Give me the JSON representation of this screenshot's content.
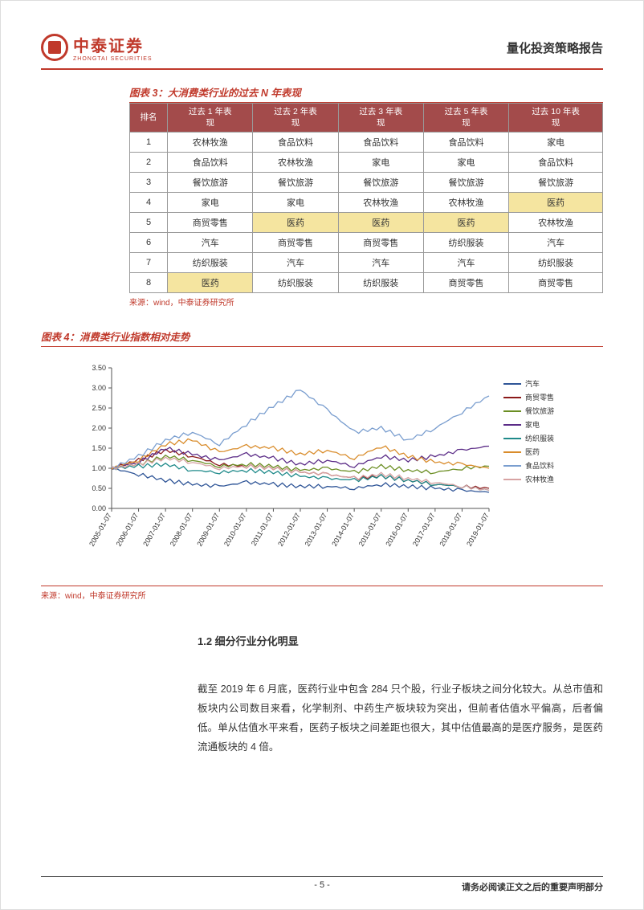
{
  "header": {
    "logo_cn": "中泰证券",
    "logo_en": "ZHONGTAI SECURITIES",
    "right": "量化投资策略报告"
  },
  "table3": {
    "caption": "图表 3：大消费类行业的过去 N 年表现",
    "columns": [
      "排名",
      "过去 1 年表现",
      "过去 2 年表现",
      "过去 3 年表现",
      "过去 5 年表现",
      "过去 10 年表现"
    ],
    "rows": [
      [
        "1",
        "农林牧渔",
        "食品饮料",
        "食品饮料",
        "食品饮料",
        "家电"
      ],
      [
        "2",
        "食品饮料",
        "农林牧渔",
        "家电",
        "家电",
        "食品饮料"
      ],
      [
        "3",
        "餐饮旅游",
        "餐饮旅游",
        "餐饮旅游",
        "餐饮旅游",
        "餐饮旅游"
      ],
      [
        "4",
        "家电",
        "家电",
        "农林牧渔",
        "农林牧渔",
        "医药"
      ],
      [
        "5",
        "商贸零售",
        "医药",
        "医药",
        "医药",
        "农林牧渔"
      ],
      [
        "6",
        "汽车",
        "商贸零售",
        "商贸零售",
        "纺织服装",
        "汽车"
      ],
      [
        "7",
        "纺织服装",
        "汽车",
        "汽车",
        "汽车",
        "纺织服装"
      ],
      [
        "8",
        "医药",
        "纺织服装",
        "纺织服装",
        "商贸零售",
        "商贸零售"
      ]
    ],
    "highlight_text": "医药",
    "highlight_color": "#f5e5a0",
    "header_bg": "#a34b4b",
    "source": "来源：wind，中泰证券研究所"
  },
  "chart4": {
    "caption": "图表 4：消费类行业指数相对走势",
    "type": "line",
    "x_labels": [
      "2005-01-07",
      "2006-01-07",
      "2007-01-07",
      "2008-01-07",
      "2009-01-07",
      "2010-01-07",
      "2011-01-07",
      "2012-01-07",
      "2013-01-07",
      "2014-01-07",
      "2015-01-07",
      "2016-01-07",
      "2017-01-07",
      "2018-01-07",
      "2019-01-07"
    ],
    "ylim": [
      0,
      3.5
    ],
    "ytick_step": 0.5,
    "yticks": [
      "0.00",
      "0.50",
      "1.00",
      "1.50",
      "2.00",
      "2.50",
      "3.00",
      "3.50"
    ],
    "tick_fontsize": 9,
    "x_label_rotation": -60,
    "background_color": "#ffffff",
    "grid": false,
    "axis_color": "#555555",
    "line_width": 1.3,
    "series": [
      {
        "name": "汽车",
        "color": "#2f5597",
        "values": [
          1.0,
          0.85,
          0.7,
          0.6,
          0.55,
          0.65,
          0.6,
          0.55,
          0.55,
          0.5,
          0.6,
          0.55,
          0.5,
          0.45,
          0.4
        ]
      },
      {
        "name": "商贸零售",
        "color": "#8b1a1a",
        "values": [
          1.0,
          1.2,
          1.45,
          1.3,
          1.1,
          1.05,
          1.0,
          0.9,
          0.85,
          0.75,
          0.8,
          0.7,
          0.6,
          0.55,
          0.5
        ]
      },
      {
        "name": "餐饮旅游",
        "color": "#6b8e23",
        "values": [
          1.0,
          1.1,
          1.3,
          1.2,
          1.05,
          1.1,
          1.05,
          0.95,
          1.0,
          0.9,
          1.05,
          0.95,
          0.9,
          1.0,
          1.05
        ]
      },
      {
        "name": "家电",
        "color": "#5b2c87",
        "values": [
          1.0,
          1.15,
          1.5,
          1.35,
          1.2,
          1.35,
          1.25,
          1.1,
          1.2,
          1.05,
          1.3,
          1.2,
          1.3,
          1.45,
          1.55
        ]
      },
      {
        "name": "纺织服装",
        "color": "#1f8a8a",
        "values": [
          1.0,
          1.05,
          1.1,
          0.95,
          0.9,
          0.95,
          0.9,
          0.8,
          0.75,
          0.7,
          0.8,
          0.7,
          0.6,
          0.55,
          0.45
        ]
      },
      {
        "name": "医药",
        "color": "#d98c2b",
        "values": [
          1.0,
          1.2,
          1.6,
          1.7,
          1.4,
          1.55,
          1.5,
          1.35,
          1.45,
          1.25,
          1.55,
          1.3,
          1.15,
          1.1,
          1.0
        ]
      },
      {
        "name": "食品饮料",
        "color": "#7a9ecf",
        "values": [
          1.0,
          1.3,
          1.7,
          1.9,
          1.6,
          2.1,
          2.55,
          2.95,
          2.45,
          1.9,
          2.0,
          1.7,
          2.0,
          2.4,
          2.8
        ]
      },
      {
        "name": "农林牧渔",
        "color": "#d7a3a3",
        "values": [
          1.0,
          1.1,
          1.25,
          1.15,
          1.0,
          1.05,
          1.0,
          0.9,
          0.85,
          0.75,
          0.85,
          0.75,
          0.65,
          0.55,
          0.45
        ]
      }
    ],
    "legend_position": "right",
    "legend_fontsize": 9,
    "source": "来源：wind，中泰证券研究所"
  },
  "section": {
    "title": "1.2 细分行业分化明显",
    "para": "截至 2019 年 6 月底，医药行业中包含 284 只个股，行业子板块之间分化较大。从总市值和板块内公司数目来看，化学制剂、中药生产板块较为突出，但前者估值水平偏高，后者偏低。单从估值水平来看，医药子板块之间差距也很大，其中估值最高的是医疗服务，是医药流通板块的 4 倍。"
  },
  "footer": {
    "page": "- 5 -",
    "right": "请务必阅读正文之后的重要声明部分"
  }
}
